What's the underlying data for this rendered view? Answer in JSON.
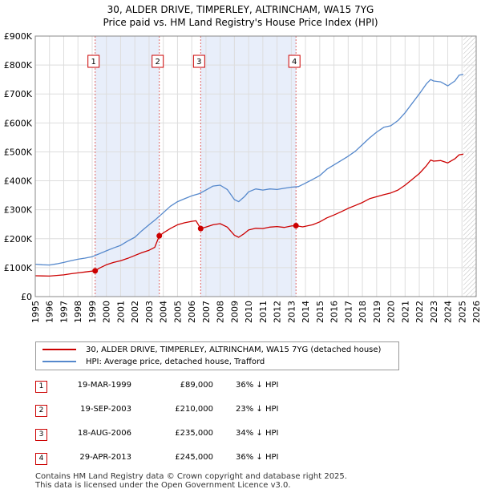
{
  "title_line1": "30, ALDER DRIVE, TIMPERLEY, ALTRINCHAM, WA15 7YG",
  "title_line2": "Price paid vs. HM Land Registry's House Price Index (HPI)",
  "chart_data": {
    "type": "line",
    "title": "30, ALDER DRIVE, TIMPERLEY, ALTRINCHAM, WA15 7YG — Price paid vs. HM Land Registry's House Price Index (HPI)",
    "xlim": [
      1995,
      2026
    ],
    "ylim": [
      0,
      900000
    ],
    "x_ticks": [
      1995,
      1996,
      1997,
      1998,
      1999,
      2000,
      2001,
      2002,
      2003,
      2004,
      2005,
      2006,
      2007,
      2008,
      2009,
      2010,
      2011,
      2012,
      2013,
      2014,
      2015,
      2016,
      2017,
      2018,
      2019,
      2020,
      2021,
      2022,
      2023,
      2024,
      2025,
      2026
    ],
    "y_ticks": [
      {
        "value": 0,
        "label": "£0"
      },
      {
        "value": 100000,
        "label": "£100K"
      },
      {
        "value": 200000,
        "label": "£200K"
      },
      {
        "value": 300000,
        "label": "£300K"
      },
      {
        "value": 400000,
        "label": "£400K"
      },
      {
        "value": 500000,
        "label": "£500K"
      },
      {
        "value": 600000,
        "label": "£600K"
      },
      {
        "value": 700000,
        "label": "£700K"
      },
      {
        "value": 800000,
        "label": "£800K"
      },
      {
        "value": 900000,
        "label": "£900K"
      }
    ],
    "colors": {
      "property": "#cc0000",
      "hpi": "#5588cc",
      "shade": "#e8eefa",
      "sale_line": "#dd6666",
      "hatch": "#bbbbbb"
    },
    "series": [
      {
        "name": "30, ALDER DRIVE, TIMPERLEY, ALTRINCHAM, WA15 7YG (detached house)",
        "key": "property",
        "points": [
          [
            1995.0,
            72000
          ],
          [
            1995.5,
            71500
          ],
          [
            1996.0,
            71000
          ],
          [
            1996.5,
            73000
          ],
          [
            1997.0,
            75000
          ],
          [
            1997.5,
            79000
          ],
          [
            1998.0,
            82000
          ],
          [
            1998.5,
            85000
          ],
          [
            1999.0,
            88000
          ],
          [
            1999.21,
            89000
          ],
          [
            1999.5,
            98000
          ],
          [
            2000.0,
            110000
          ],
          [
            2000.5,
            118000
          ],
          [
            2001.0,
            124000
          ],
          [
            2001.5,
            132000
          ],
          [
            2002.0,
            142000
          ],
          [
            2002.5,
            152000
          ],
          [
            2003.0,
            160000
          ],
          [
            2003.4,
            170000
          ],
          [
            2003.72,
            210000
          ],
          [
            2004.0,
            220000
          ],
          [
            2004.5,
            235000
          ],
          [
            2005.0,
            248000
          ],
          [
            2005.5,
            255000
          ],
          [
            2006.0,
            260000
          ],
          [
            2006.3,
            262000
          ],
          [
            2006.63,
            235000
          ],
          [
            2007.0,
            240000
          ],
          [
            2007.5,
            248000
          ],
          [
            2008.0,
            252000
          ],
          [
            2008.5,
            240000
          ],
          [
            2009.0,
            212000
          ],
          [
            2009.3,
            205000
          ],
          [
            2009.7,
            218000
          ],
          [
            2010.0,
            230000
          ],
          [
            2010.5,
            236000
          ],
          [
            2011.0,
            235000
          ],
          [
            2011.5,
            240000
          ],
          [
            2012.0,
            242000
          ],
          [
            2012.5,
            239000
          ],
          [
            2013.0,
            244000
          ],
          [
            2013.33,
            245000
          ],
          [
            2013.8,
            241000
          ],
          [
            2014.5,
            248000
          ],
          [
            2015.0,
            258000
          ],
          [
            2015.5,
            272000
          ],
          [
            2016.0,
            282000
          ],
          [
            2016.5,
            293000
          ],
          [
            2017.0,
            305000
          ],
          [
            2017.5,
            315000
          ],
          [
            2018.0,
            325000
          ],
          [
            2018.5,
            338000
          ],
          [
            2019.0,
            345000
          ],
          [
            2019.5,
            352000
          ],
          [
            2020.0,
            358000
          ],
          [
            2020.5,
            368000
          ],
          [
            2021.0,
            385000
          ],
          [
            2021.5,
            405000
          ],
          [
            2022.0,
            425000
          ],
          [
            2022.5,
            452000
          ],
          [
            2022.8,
            472000
          ],
          [
            2023.0,
            468000
          ],
          [
            2023.5,
            470000
          ],
          [
            2024.0,
            462000
          ],
          [
            2024.5,
            476000
          ],
          [
            2024.8,
            490000
          ],
          [
            2025.1,
            492000
          ]
        ]
      },
      {
        "name": "HPI: Average price, detached house, Trafford",
        "key": "hpi",
        "points": [
          [
            1995.0,
            112000
          ],
          [
            1995.5,
            110000
          ],
          [
            1996.0,
            109000
          ],
          [
            1996.5,
            113000
          ],
          [
            1997.0,
            118000
          ],
          [
            1997.5,
            124000
          ],
          [
            1998.0,
            129000
          ],
          [
            1998.5,
            133000
          ],
          [
            1999.0,
            138000
          ],
          [
            1999.5,
            148000
          ],
          [
            2000.0,
            158000
          ],
          [
            2000.5,
            168000
          ],
          [
            2001.0,
            177000
          ],
          [
            2001.5,
            192000
          ],
          [
            2002.0,
            205000
          ],
          [
            2002.5,
            228000
          ],
          [
            2003.0,
            248000
          ],
          [
            2003.5,
            268000
          ],
          [
            2004.0,
            290000
          ],
          [
            2004.5,
            312000
          ],
          [
            2005.0,
            328000
          ],
          [
            2005.5,
            338000
          ],
          [
            2006.0,
            348000
          ],
          [
            2006.5,
            355000
          ],
          [
            2007.0,
            368000
          ],
          [
            2007.5,
            382000
          ],
          [
            2008.0,
            385000
          ],
          [
            2008.5,
            370000
          ],
          [
            2009.0,
            335000
          ],
          [
            2009.3,
            328000
          ],
          [
            2009.7,
            345000
          ],
          [
            2010.0,
            362000
          ],
          [
            2010.5,
            372000
          ],
          [
            2011.0,
            368000
          ],
          [
            2011.5,
            372000
          ],
          [
            2012.0,
            370000
          ],
          [
            2012.5,
            374000
          ],
          [
            2013.0,
            378000
          ],
          [
            2013.5,
            380000
          ],
          [
            2014.0,
            392000
          ],
          [
            2014.5,
            405000
          ],
          [
            2015.0,
            418000
          ],
          [
            2015.5,
            440000
          ],
          [
            2016.0,
            455000
          ],
          [
            2016.5,
            470000
          ],
          [
            2017.0,
            485000
          ],
          [
            2017.5,
            502000
          ],
          [
            2018.0,
            525000
          ],
          [
            2018.5,
            548000
          ],
          [
            2019.0,
            568000
          ],
          [
            2019.5,
            585000
          ],
          [
            2020.0,
            590000
          ],
          [
            2020.5,
            608000
          ],
          [
            2021.0,
            635000
          ],
          [
            2021.5,
            668000
          ],
          [
            2022.0,
            700000
          ],
          [
            2022.5,
            735000
          ],
          [
            2022.8,
            750000
          ],
          [
            2023.0,
            745000
          ],
          [
            2023.5,
            742000
          ],
          [
            2024.0,
            728000
          ],
          [
            2024.5,
            745000
          ],
          [
            2024.8,
            765000
          ],
          [
            2025.1,
            768000
          ]
        ]
      }
    ],
    "sales": [
      {
        "num": "1",
        "x": 1999.21,
        "price": 89000
      },
      {
        "num": "2",
        "x": 2003.72,
        "price": 210000
      },
      {
        "num": "3",
        "x": 2006.63,
        "price": 235000
      },
      {
        "num": "4",
        "x": 2013.33,
        "price": 245000
      }
    ],
    "shaded_ranges": [
      [
        1999.21,
        2003.72
      ],
      [
        2006.63,
        2013.33
      ]
    ],
    "hatch_from": 2025.1
  },
  "legend": {
    "property_label": "30, ALDER DRIVE, TIMPERLEY, ALTRINCHAM, WA15 7YG (detached house)",
    "hpi_label": "HPI: Average price, detached house, Trafford"
  },
  "sales_table": [
    {
      "num": "1",
      "date": "19-MAR-1999",
      "price": "£89,000",
      "hpi": "36% ↓ HPI"
    },
    {
      "num": "2",
      "date": "19-SEP-2003",
      "price": "£210,000",
      "hpi": "23% ↓ HPI"
    },
    {
      "num": "3",
      "date": "18-AUG-2006",
      "price": "£235,000",
      "hpi": "34% ↓ HPI"
    },
    {
      "num": "4",
      "date": "29-APR-2013",
      "price": "£245,000",
      "hpi": "36% ↓ HPI"
    }
  ],
  "footer_line1": "Contains HM Land Registry data © Crown copyright and database right 2025.",
  "footer_line2": "This data is licensed under the Open Government Licence v3.0."
}
